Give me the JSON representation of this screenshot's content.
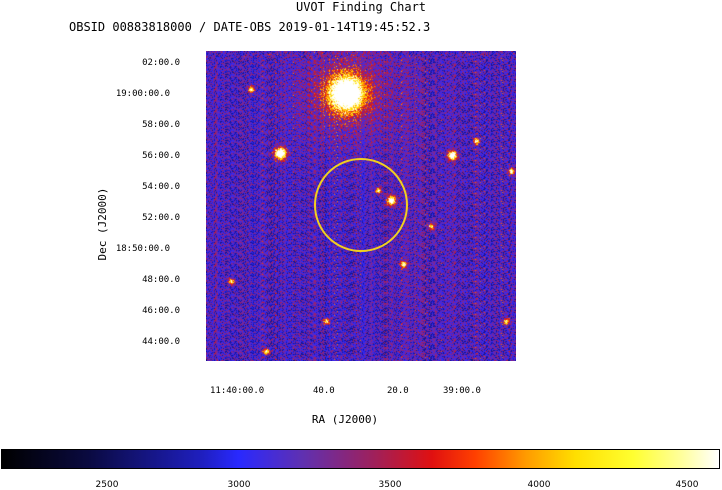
{
  "title": "UVOT Finding Chart",
  "subtitle": "OBSID 00883818000 / DATE-OBS 2019-01-14T19:45:52.3",
  "axes": {
    "dec_label": "Dec (J2000)",
    "ra_label": "RA (J2000)",
    "dec_ticks": [
      "02:00.0",
      "19:00:00.0",
      "58:00.0",
      "56:00.0",
      "54:00.0",
      "52:00.0",
      "18:50:00.0",
      "48:00.0",
      "46:00.0",
      "44:00.0"
    ],
    "ra_ticks": [
      "11:40:00.0",
      "40.0",
      "20.0",
      "39:00.0"
    ]
  },
  "colorbar": {
    "ticks": [
      "2500",
      "3000",
      "3500",
      "4000",
      "4500"
    ]
  },
  "colors": {
    "circle": "#f0d020",
    "background_noise": "#3b1fa0"
  }
}
